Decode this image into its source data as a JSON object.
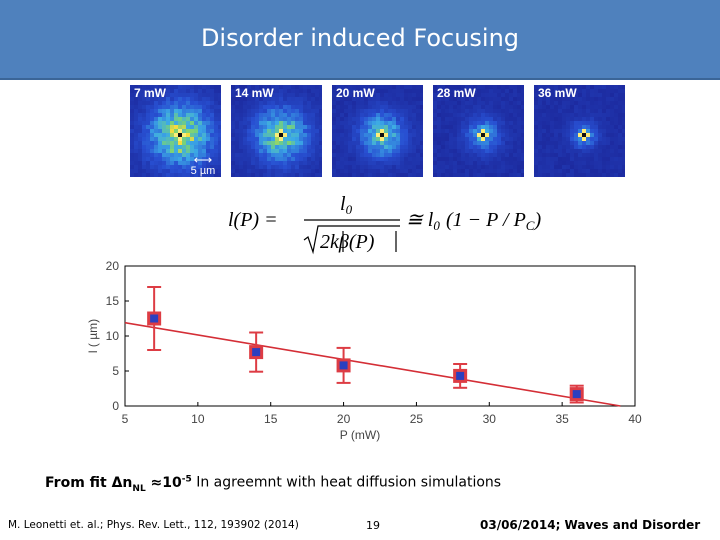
{
  "slide": {
    "title": "Disorder induced Focusing",
    "panels": [
      {
        "label": "7 mW",
        "spread": 1.0
      },
      {
        "label": "14 mW",
        "spread": 0.8
      },
      {
        "label": "20 mW",
        "spread": 0.6
      },
      {
        "label": "28 mW",
        "spread": 0.35
      },
      {
        "label": "36 mW",
        "spread": 0.2
      }
    ],
    "scale_bar_label": "5 µm",
    "caption": {
      "prefix": "From fit Δn",
      "sub": "NL",
      "approx": " ≈10",
      "sup": "-5",
      "suffix": " In agreemnt with heat diffusion simulations"
    },
    "footer": {
      "reference": "M. Leonetti et. al.; Phys. Rev. Lett., 112, 193902 (2014)",
      "page_number": "19",
      "date_event": "03/06/2014; Waves and Disorder"
    }
  },
  "formula": {
    "lhs": "l(P) = ",
    "numerator": "l",
    "numerator_sub": "0",
    "denominator": "2kβ(P)",
    "approx": "≅ l",
    "approx_sub": "0",
    "rhs_open": "(1 − P / P",
    "rhs_sub": "C",
    "rhs_close": ")"
  },
  "chart_data": {
    "type": "scatter",
    "xlabel": "P (mW)",
    "ylabel": "l ( µm)",
    "xlim": [
      5,
      40
    ],
    "ylim": [
      0,
      20
    ],
    "xticks": [
      5,
      10,
      15,
      20,
      25,
      30,
      35,
      40
    ],
    "yticks": [
      0,
      5,
      10,
      15,
      20
    ],
    "points": [
      {
        "x": 7,
        "y": 12.5,
        "err": 4.5
      },
      {
        "x": 14,
        "y": 7.7,
        "err": 2.8
      },
      {
        "x": 20,
        "y": 5.8,
        "err": 2.5
      },
      {
        "x": 28,
        "y": 4.3,
        "err": 1.7
      },
      {
        "x": 36,
        "y": 1.7,
        "err": 1.2
      }
    ],
    "fit_line": {
      "x": [
        5,
        39
      ],
      "y": [
        11.9,
        0
      ]
    },
    "colors": {
      "points": "#2b3fbf",
      "error_bars": "#dd3c44",
      "fit": "#d42e36",
      "axis": "#000000"
    }
  }
}
